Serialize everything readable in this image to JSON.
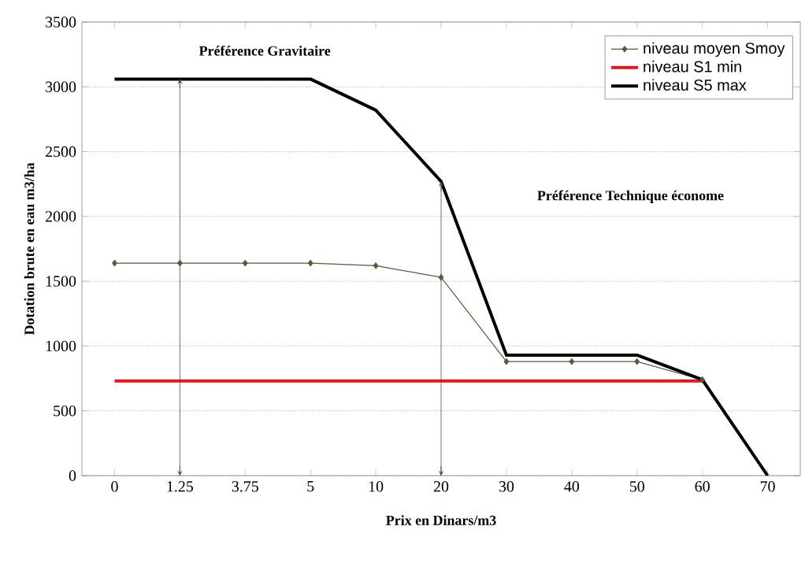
{
  "chart_data": {
    "type": "line",
    "xlabel": "Prix en Dinars/m3",
    "ylabel": "Dotation brute en eau m3/ha",
    "categories": [
      "0",
      "1.25",
      "3.75",
      "5",
      "10",
      "20",
      "30",
      "40",
      "50",
      "60",
      "70"
    ],
    "series": [
      {
        "name": "niveau moyen Smoy",
        "color": "#5a5a3a",
        "marker": "diamond",
        "values": [
          1640,
          1640,
          1640,
          1640,
          1620,
          1530,
          880,
          880,
          880,
          740,
          null
        ]
      },
      {
        "name": "niveau S1 min",
        "color": "#e8141c",
        "values": [
          730,
          730,
          730,
          730,
          730,
          730,
          730,
          730,
          730,
          730,
          null
        ]
      },
      {
        "name": "niveau S5 max",
        "color": "#000000",
        "values": [
          3060,
          3060,
          3060,
          3060,
          2820,
          2270,
          930,
          930,
          930,
          740,
          0
        ]
      }
    ],
    "ylim": [
      0,
      3500
    ],
    "yticks": [
      0,
      500,
      1000,
      1500,
      2000,
      2500,
      3000,
      3500
    ],
    "ref_lines": [
      {
        "axis": "x",
        "value": "1.25",
        "color": "#4c4c4c"
      },
      {
        "axis": "x",
        "value": "20",
        "color": "#4c4c4c"
      }
    ],
    "grid": "y",
    "legend": "top right",
    "annotations": [
      "Préférence Gravitaire",
      "Préférence Technique économe"
    ]
  }
}
